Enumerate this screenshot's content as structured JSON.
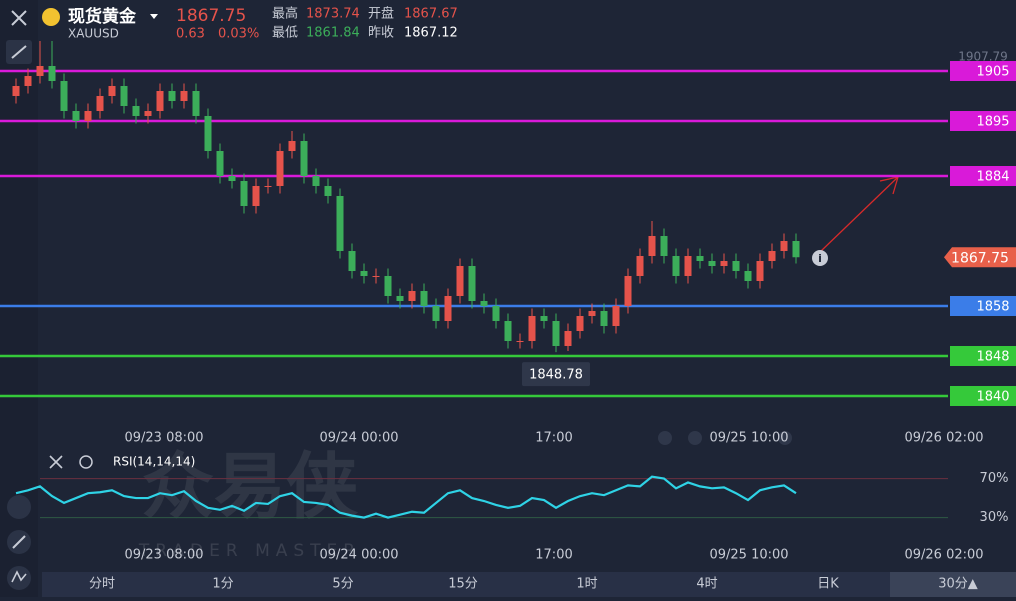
{
  "header": {
    "title": "现货黄金",
    "symbol": "XAUUSD",
    "price": "1867.75",
    "change": "0.63",
    "change_pct": "0.03%",
    "stats": [
      {
        "label": "最高",
        "value": "1873.74"
      },
      {
        "label": "开盘",
        "value": "1867.67"
      },
      {
        "label": "最低",
        "value": "1861.84"
      },
      {
        "label": "昨收",
        "value": "1867.12"
      }
    ]
  },
  "chart_data": [
    {
      "type": "candlestick",
      "ylim": [
        1834,
        1911
      ],
      "up_color": "#e5534b",
      "down_color": "#3cae5a",
      "top_label": 1907.79,
      "last_price": 1867.75,
      "low_annotation": 1848.78,
      "levels": [
        {
          "value": 1905,
          "color": "#d91ad9"
        },
        {
          "value": 1895,
          "color": "#d91ad9"
        },
        {
          "value": 1884,
          "color": "#d91ad9"
        },
        {
          "value": 1858,
          "color": "#3b7de8"
        },
        {
          "value": 1848,
          "color": "#35c93a"
        },
        {
          "value": 1840,
          "color": "#35c93a"
        }
      ],
      "x_labels": [
        "09/23 08:00",
        "09/24 00:00",
        "17:00",
        "09/25 10:00",
        "09/26 02:00"
      ],
      "open": [
        1900,
        1902,
        1904,
        1906,
        1903,
        1897,
        1895,
        1897,
        1900,
        1902,
        1898,
        1896,
        1897,
        1901,
        1899,
        1901,
        1896,
        1889,
        1884,
        1883,
        1878,
        1882,
        1882,
        1889,
        1891,
        1884,
        1882,
        1880,
        1869,
        1865,
        1864,
        1864,
        1860,
        1859,
        1861,
        1858,
        1855,
        1860,
        1866,
        1859,
        1858,
        1855,
        1851,
        1851,
        1856,
        1855,
        1850,
        1853,
        1856,
        1857,
        1854,
        1858,
        1864,
        1868,
        1872,
        1868,
        1864,
        1868,
        1867,
        1866,
        1867,
        1865,
        1863,
        1867,
        1869,
        1871
      ],
      "high": [
        1903.5,
        1905.5,
        1911,
        1911,
        1904.5,
        1898.5,
        1898.5,
        1901.5,
        1903.5,
        1903.5,
        1899.5,
        1898.5,
        1902.5,
        1902.5,
        1902.5,
        1902.5,
        1897.5,
        1890.5,
        1885.5,
        1884.5,
        1883.5,
        1883.5,
        1890.5,
        1893,
        1892.5,
        1885.5,
        1883.5,
        1881.5,
        1870.5,
        1866.5,
        1865.5,
        1865.5,
        1861.5,
        1862.5,
        1862.5,
        1859.5,
        1861.5,
        1867.5,
        1867.5,
        1860.5,
        1859.5,
        1856.5,
        1852.5,
        1857.5,
        1857.5,
        1856.5,
        1854.5,
        1857.5,
        1858.5,
        1858.5,
        1859.5,
        1865.5,
        1869.5,
        1875,
        1873.5,
        1869.5,
        1869.5,
        1869.5,
        1868.5,
        1868.5,
        1868.5,
        1866.5,
        1868.5,
        1870.5,
        1872.5,
        1872.5
      ],
      "low": [
        1898.5,
        1900.5,
        1902.5,
        1901.5,
        1895.5,
        1893.5,
        1893.5,
        1895.5,
        1898.5,
        1896.5,
        1894.5,
        1894.5,
        1895.5,
        1897.5,
        1897.5,
        1894.5,
        1887.5,
        1882.5,
        1881.5,
        1876.5,
        1876.5,
        1880.5,
        1880.5,
        1887.5,
        1882.5,
        1880.5,
        1878.5,
        1867.5,
        1863.5,
        1862.5,
        1862.5,
        1858.5,
        1857.5,
        1857.5,
        1856.5,
        1853.5,
        1853.5,
        1858.5,
        1857.5,
        1856.5,
        1853.5,
        1849.5,
        1849.5,
        1849.5,
        1853.5,
        1848.78,
        1849,
        1851.5,
        1854.5,
        1852.5,
        1852.5,
        1856.5,
        1862.5,
        1866.5,
        1866.5,
        1862.5,
        1862.5,
        1865.5,
        1864.5,
        1864.5,
        1863.5,
        1861.5,
        1861.5,
        1865.5,
        1867.5,
        1866.5
      ],
      "close": [
        1902,
        1904,
        1906,
        1903,
        1897,
        1895,
        1897,
        1900,
        1902,
        1898,
        1896,
        1897,
        1901,
        1899,
        1901,
        1896,
        1889,
        1884,
        1883,
        1878,
        1882,
        1882,
        1889,
        1891,
        1884,
        1882,
        1880,
        1869,
        1865,
        1864,
        1864,
        1860,
        1859,
        1861,
        1858,
        1855,
        1860,
        1866,
        1859,
        1858,
        1855,
        1851,
        1851,
        1856,
        1855,
        1850,
        1853,
        1856,
        1857,
        1854,
        1858,
        1864,
        1868,
        1872,
        1868,
        1864,
        1868,
        1867,
        1866,
        1867,
        1865,
        1863,
        1867,
        1869,
        1871,
        1867.75
      ]
    },
    {
      "type": "line",
      "title": "RSI(14,14,14)",
      "color": "#2fd3e6",
      "ylim": [
        7,
        87
      ],
      "yticks": [
        {
          "value": 70,
          "label": "70%"
        },
        {
          "value": 30,
          "label": "30%"
        }
      ],
      "values": [
        55,
        58,
        62,
        52,
        45,
        50,
        55,
        56,
        58,
        52,
        50,
        50,
        55,
        53,
        57,
        47,
        40,
        38,
        42,
        37,
        45,
        44,
        52,
        55,
        46,
        45,
        43,
        35,
        32,
        30,
        34,
        30,
        33,
        36,
        35,
        45,
        55,
        58,
        50,
        47,
        43,
        40,
        42,
        50,
        48,
        40,
        47,
        52,
        55,
        53,
        58,
        63,
        62,
        72,
        70,
        60,
        66,
        62,
        60,
        61,
        55,
        48,
        58,
        61,
        63,
        55
      ]
    }
  ],
  "watermark": {
    "name": "众易侠",
    "subtitle": "TRADER MASTER"
  },
  "toolbar": {
    "tabs": [
      "分时",
      "1分",
      "5分",
      "15分",
      "1时",
      "4时",
      "日K"
    ],
    "selected": "30分▲"
  }
}
